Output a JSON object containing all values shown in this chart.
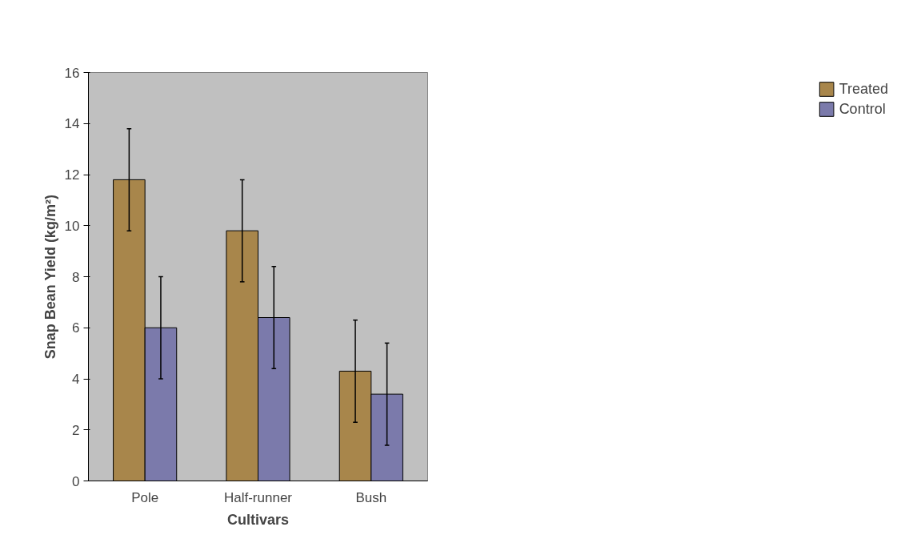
{
  "chart_data": {
    "type": "bar",
    "xlabel": "Cultivars",
    "ylabel": "Snap Bean Yield (kg/m²)",
    "categories": [
      "Pole",
      "Half-runner",
      "Bush"
    ],
    "series": [
      {
        "name": "Treated",
        "color": "#a8864b",
        "values": [
          11.8,
          9.8,
          4.3
        ],
        "errors": [
          2,
          2,
          2
        ]
      },
      {
        "name": "Control",
        "color": "#7b7aab",
        "values": [
          6.0,
          6.4,
          3.4
        ],
        "errors": [
          2,
          2,
          2
        ]
      }
    ],
    "ylim": [
      0,
      16
    ],
    "yticks": [
      0,
      2,
      4,
      6,
      8,
      10,
      12,
      14,
      16
    ],
    "grid": false,
    "legend": "right"
  }
}
